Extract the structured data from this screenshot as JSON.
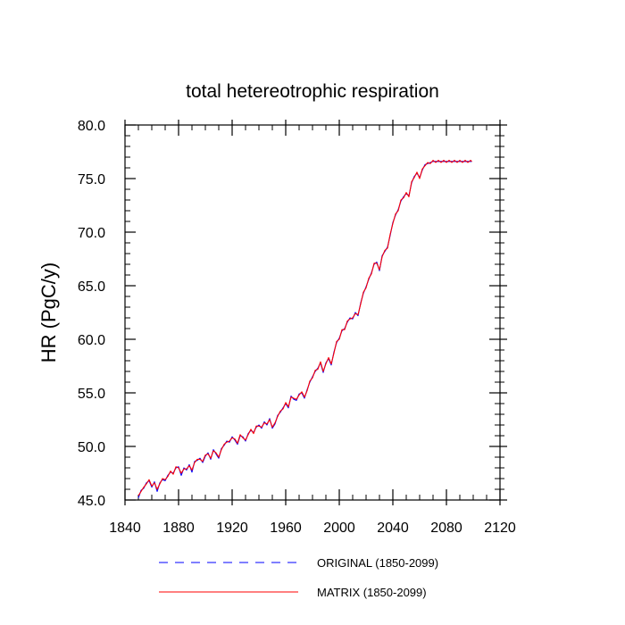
{
  "chart_data": {
    "type": "line",
    "title": "total hetereotrophic respiration",
    "xlabel": "",
    "ylabel": "HR  (PgC/y)",
    "xlim": [
      1840,
      2120
    ],
    "ylim": [
      45,
      80
    ],
    "x_ticks": [
      1840,
      1880,
      1920,
      1960,
      2000,
      2040,
      2080,
      2120
    ],
    "x_tick_labels": [
      "1840",
      "1880",
      "1920",
      "1960",
      "2000",
      "2040",
      "2080",
      "2120"
    ],
    "y_ticks": [
      45,
      50,
      55,
      60,
      65,
      70,
      75,
      80
    ],
    "y_tick_labels": [
      "45.0",
      "50.0",
      "55.0",
      "60.0",
      "65.0",
      "70.0",
      "75.0",
      "80.0"
    ],
    "grid": false,
    "legend_position": "bottom",
    "x": [
      1850,
      1852,
      1854,
      1856,
      1858,
      1860,
      1862,
      1864,
      1866,
      1868,
      1870,
      1872,
      1874,
      1876,
      1878,
      1880,
      1882,
      1884,
      1886,
      1888,
      1890,
      1892,
      1894,
      1896,
      1898,
      1900,
      1902,
      1904,
      1906,
      1908,
      1910,
      1912,
      1914,
      1916,
      1918,
      1920,
      1922,
      1924,
      1926,
      1928,
      1930,
      1932,
      1934,
      1936,
      1938,
      1940,
      1942,
      1944,
      1946,
      1948,
      1950,
      1952,
      1954,
      1956,
      1958,
      1960,
      1962,
      1964,
      1966,
      1968,
      1970,
      1972,
      1974,
      1976,
      1978,
      1980,
      1982,
      1984,
      1986,
      1988,
      1990,
      1992,
      1994,
      1996,
      1998,
      2000,
      2002,
      2004,
      2006,
      2008,
      2010,
      2012,
      2014,
      2016,
      2018,
      2020,
      2022,
      2024,
      2026,
      2028,
      2030,
      2032,
      2034,
      2036,
      2038,
      2040,
      2042,
      2044,
      2046,
      2048,
      2050,
      2052,
      2054,
      2056,
      2058,
      2060,
      2062,
      2064,
      2066,
      2068,
      2070,
      2072,
      2074,
      2076,
      2078,
      2080,
      2082,
      2084,
      2086,
      2088,
      2090,
      2092,
      2094,
      2096,
      2098,
      2099
    ],
    "series": [
      {
        "name": "ORIGINAL (1850-2099)",
        "color": "#0000ff",
        "style": "dashed",
        "values": [
          45.2,
          45.9,
          46.1,
          46.6,
          46.8,
          46.2,
          46.7,
          45.8,
          46.6,
          46.9,
          46.8,
          47.3,
          47.6,
          47.5,
          48.0,
          48.1,
          47.3,
          48.0,
          47.8,
          48.3,
          47.6,
          48.6,
          48.7,
          48.9,
          48.5,
          49.1,
          49.4,
          48.8,
          49.7,
          49.3,
          48.9,
          49.8,
          50.1,
          50.5,
          50.4,
          50.9,
          50.6,
          50.2,
          51.0,
          50.9,
          50.5,
          51.2,
          51.5,
          51.3,
          51.8,
          52.0,
          51.7,
          52.3,
          52.0,
          52.6,
          51.7,
          52.1,
          52.9,
          53.2,
          53.6,
          54.0,
          53.6,
          54.7,
          54.4,
          54.3,
          54.9,
          55.0,
          54.5,
          55.3,
          56.0,
          56.5,
          57.0,
          57.3,
          57.8,
          56.9,
          57.8,
          58.2,
          57.6,
          58.8,
          59.7,
          60.1,
          60.8,
          61.0,
          61.6,
          62.0,
          61.9,
          62.5,
          62.2,
          63.4,
          64.3,
          64.9,
          65.6,
          66.2,
          67.0,
          67.2,
          66.4,
          67.8,
          68.2,
          68.6,
          69.7,
          70.9,
          71.6,
          72.1,
          72.9,
          73.3,
          73.6,
          73.4,
          74.6,
          75.2,
          75.5,
          75.1,
          75.8,
          76.3,
          76.4,
          76.5,
          76.6,
          76.6,
          76.6,
          76.6,
          76.6,
          76.6,
          76.6,
          76.6,
          76.6,
          76.6,
          76.6,
          76.6,
          76.6,
          76.6,
          76.6,
          76.6
        ]
      },
      {
        "name": "MATRIX (1850-2099)",
        "color": "#ff0000",
        "style": "solid",
        "values": [
          45.4,
          45.8,
          46.2,
          46.5,
          46.9,
          46.3,
          46.6,
          46.0,
          46.5,
          47.0,
          46.9,
          47.2,
          47.7,
          47.4,
          48.1,
          48.0,
          47.5,
          47.9,
          47.9,
          48.2,
          47.8,
          48.5,
          48.8,
          48.8,
          48.6,
          49.2,
          49.3,
          48.9,
          49.6,
          49.4,
          49.0,
          49.7,
          50.2,
          50.4,
          50.5,
          50.8,
          50.7,
          50.3,
          51.1,
          50.8,
          50.6,
          51.1,
          51.6,
          51.2,
          51.9,
          51.9,
          51.8,
          52.2,
          52.1,
          52.5,
          51.8,
          52.2,
          52.8,
          53.3,
          53.5,
          54.1,
          53.7,
          54.6,
          54.5,
          54.4,
          54.8,
          55.1,
          54.6,
          55.2,
          56.1,
          56.4,
          57.1,
          57.2,
          57.9,
          57.0,
          57.7,
          58.3,
          57.7,
          58.7,
          59.8,
          60.0,
          60.9,
          60.9,
          61.7,
          61.9,
          62.0,
          62.4,
          62.3,
          63.3,
          64.4,
          64.8,
          65.7,
          66.1,
          67.1,
          67.1,
          66.5,
          67.7,
          68.3,
          68.5,
          69.8,
          70.8,
          71.7,
          72.0,
          73.0,
          73.2,
          73.7,
          73.3,
          74.7,
          75.1,
          75.6,
          75.0,
          75.9,
          76.2,
          76.5,
          76.4,
          76.7,
          76.5,
          76.7,
          76.5,
          76.7,
          76.5,
          76.7,
          76.5,
          76.7,
          76.5,
          76.7,
          76.5,
          76.7,
          76.5,
          76.7,
          76.6
        ]
      }
    ]
  }
}
